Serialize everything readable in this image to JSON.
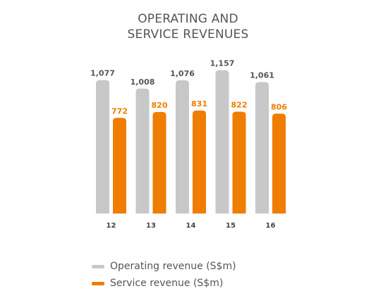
{
  "chart_data": {
    "type": "bar",
    "title_lines": [
      "OPERATING AND",
      "SERVICE REVENUES"
    ],
    "categories": [
      "12",
      "13",
      "14",
      "15",
      "16"
    ],
    "series": [
      {
        "name": "Operating revenue (S$m)",
        "values": [
          1077,
          1008,
          1076,
          1157,
          1061
        ],
        "labels": [
          "1,077",
          "1,008",
          "1,076",
          "1,157",
          "1,061"
        ],
        "color": "#c8c8c8",
        "label_color": "#555555"
      },
      {
        "name": "Service revenue (S$m)",
        "values": [
          772,
          820,
          831,
          822,
          806
        ],
        "labels": [
          "772",
          "820",
          "831",
          "822",
          "806"
        ],
        "color": "#ef7d00",
        "label_color": "#ef7d00"
      }
    ],
    "ylim": [
      0,
      1240
    ],
    "grid": false,
    "legend": "bottom-left",
    "category_label_color": "#444444"
  }
}
